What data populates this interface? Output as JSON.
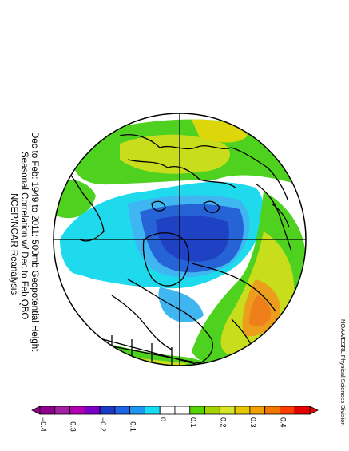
{
  "title": {
    "line1": "Dec to Feb: 1949 to 2011: 500mb Geopotential Height",
    "line2": "Seasonal Correlation w/ Dec to Feb QBO",
    "line3": "NCEP/NCAR Reanalysis"
  },
  "credit": "NOAA/ESRL Physical Sciences Division",
  "colorbar": {
    "colors": [
      "#8f008f",
      "#a41fa4",
      "#b100b1",
      "#7a00c8",
      "#1d39c8",
      "#1e64e6",
      "#1e96f0",
      "#19dcf2",
      "#ffffff",
      "#ffffff",
      "#55d500",
      "#a4d300",
      "#d7e42a",
      "#e6c800",
      "#f0a000",
      "#f07800",
      "#ff3c00",
      "#e60000"
    ],
    "tick_labels": [
      "−0.4",
      "−0.3",
      "−0.2",
      "−0.1",
      "0",
      "0.1",
      "0.2",
      "0.3",
      "0.4"
    ]
  },
  "map": {
    "projection": "north-polar-stereographic",
    "variable": "500mb geopotential height correlation",
    "palette": {
      "land_outline": "#000000",
      "green": "#4fd11f",
      "yellow_green": "#c8de1c",
      "yellow": "#dcd60a",
      "orange": "#eb9d1c",
      "orange_dark": "#ef7f1a",
      "cyan": "#1fd9ec",
      "light_blue": "#3fb6f2",
      "blue": "#2563d6",
      "blue_dark": "#1f42c5"
    }
  }
}
